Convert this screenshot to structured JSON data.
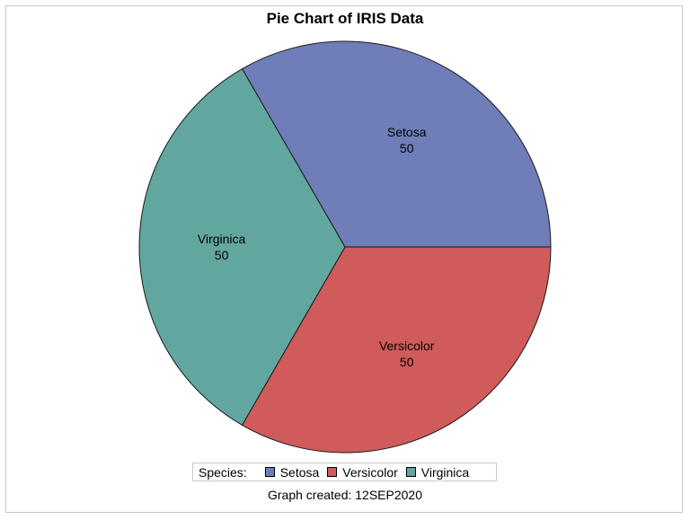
{
  "chart_data": {
    "type": "pie",
    "title": "Pie Chart of IRIS Data",
    "categories": [
      "Setosa",
      "Versicolor",
      "Virginica"
    ],
    "values": [
      50,
      50,
      50
    ],
    "colors": [
      "#6f7db8",
      "#cf5b5b",
      "#62a79f"
    ],
    "legend": {
      "title": "Species:",
      "placement": "bottom",
      "items": [
        "Setosa",
        "Versicolor",
        "Virginica"
      ]
    },
    "footnote": "Graph created: 12SEP2020"
  }
}
